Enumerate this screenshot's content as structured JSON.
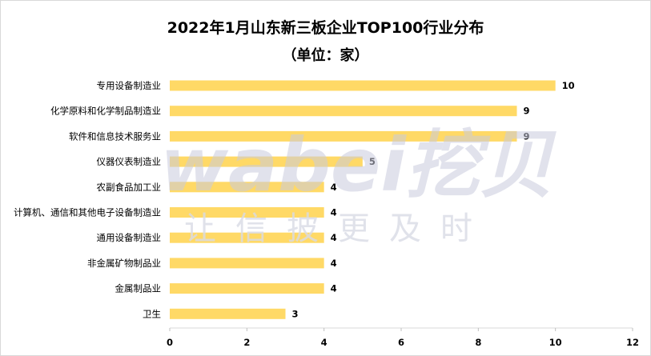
{
  "chart_data": {
    "type": "bar",
    "orientation": "horizontal",
    "title": "2022年1月山东新三板企业TOP100行业分布",
    "subtitle": "（单位：家）",
    "categories": [
      "专用设备制造业",
      "化学原料和化学制品制造业",
      "软件和信息技术服务业",
      "仪器仪表制造业",
      "农副食品加工业",
      "计算机、通信和其他电子设备制造业",
      "通用设备制造业",
      "非金属矿物制品业",
      "金属制品业",
      "卫生"
    ],
    "values": [
      10,
      9,
      9,
      5,
      4,
      4,
      4,
      4,
      4,
      3
    ],
    "xlim": [
      0,
      12
    ],
    "xticks": [
      0,
      2,
      4,
      6,
      8,
      10,
      12
    ],
    "grid": false,
    "bar_color": "#ffd966",
    "data_labels": true
  },
  "watermark": {
    "logo": "wabei挖贝",
    "slogan": "让信披更及时",
    "color": "#c9cbdc"
  }
}
